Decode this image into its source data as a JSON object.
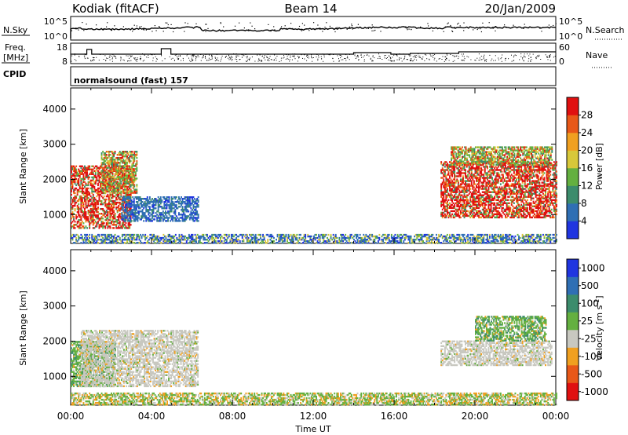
{
  "header": {
    "station": "Kodiak (fitACF)",
    "beam": "Beam 14",
    "date": "20/Jan/2009"
  },
  "noise_panel": {
    "left_label": "N.Sky",
    "left_ticks": [
      "10^5",
      "10^0"
    ],
    "right_label": "N.Search",
    "right_ticks": [
      "10^5",
      "10^0"
    ]
  },
  "freq_panel": {
    "left_label_1": "Freq.",
    "left_label_2": "[MHz]",
    "left_ticks": [
      "18",
      "8"
    ],
    "right_label": "Nave",
    "right_ticks": [
      "60",
      "0"
    ]
  },
  "cpid": {
    "label": "CPID",
    "text": "normalsound (fast) 157"
  },
  "x_axis": {
    "label": "Time UT",
    "ticks": [
      "00:00",
      "04:00",
      "08:00",
      "12:00",
      "16:00",
      "20:00",
      "00:00"
    ]
  },
  "chart_data": [
    {
      "type": "heatmap",
      "ylabel": "Slant Range [km]",
      "xlabel": "Time UT",
      "xlim": [
        0,
        24
      ],
      "ylim": [
        180,
        4600
      ],
      "yticks": [
        "1000",
        "2000",
        "3000",
        "4000"
      ],
      "colorbar": {
        "label": "Power [dB]",
        "range": [
          0,
          32
        ],
        "ticks": [
          "4",
          "8",
          "12",
          "16",
          "20",
          "24",
          "28"
        ],
        "colors": [
          "#2035e0",
          "#2f6fb4",
          "#3c8c6c",
          "#64b040",
          "#d8c83a",
          "#f0a020",
          "#e85818",
          "#e01010"
        ]
      },
      "echo_regions": [
        {
          "t": [
            0.0,
            3.0
          ],
          "r": [
            600,
            2400
          ],
          "level": "high"
        },
        {
          "t": [
            1.5,
            3.3
          ],
          "r": [
            1600,
            2800
          ],
          "level": "medium"
        },
        {
          "t": [
            2.5,
            6.3
          ],
          "r": [
            800,
            1500
          ],
          "level": "low"
        },
        {
          "t": [
            18.3,
            24.0
          ],
          "r": [
            900,
            2500
          ],
          "level": "high"
        },
        {
          "t": [
            18.8,
            23.8
          ],
          "r": [
            2400,
            2900
          ],
          "level": "medium"
        },
        {
          "t": [
            0.0,
            24.0
          ],
          "r": [
            180,
            450
          ],
          "level": "ground-scatter"
        }
      ]
    },
    {
      "type": "heatmap",
      "ylabel": "Slant Range [km]",
      "xlabel": "Time UT",
      "xlim": [
        0,
        24
      ],
      "ylim": [
        180,
        4600
      ],
      "yticks": [
        "1000",
        "2000",
        "3000",
        "4000"
      ],
      "colorbar": {
        "label": "Velocity [m s^-1]",
        "ticks": [
          "1000",
          "500",
          "100",
          "25",
          "-25",
          "-100",
          "-500",
          "-1000"
        ],
        "colors": [
          "#2035e0",
          "#2f6fb4",
          "#3c8c6c",
          "#64b040",
          "#c8c8c0",
          "#f0a020",
          "#e85818",
          "#e01010"
        ]
      },
      "echo_regions": [
        {
          "t": [
            0.0,
            2.2
          ],
          "r": [
            700,
            2000
          ],
          "level": "positive"
        },
        {
          "t": [
            0.5,
            6.3
          ],
          "r": [
            700,
            2300
          ],
          "level": "ground-scatter"
        },
        {
          "t": [
            18.3,
            23.8
          ],
          "r": [
            1300,
            2000
          ],
          "level": "ground-scatter"
        },
        {
          "t": [
            20.0,
            23.5
          ],
          "r": [
            2000,
            2700
          ],
          "level": "positive"
        },
        {
          "t": [
            0.0,
            24.0
          ],
          "r": [
            180,
            500
          ],
          "level": "positive-weak"
        }
      ]
    }
  ]
}
